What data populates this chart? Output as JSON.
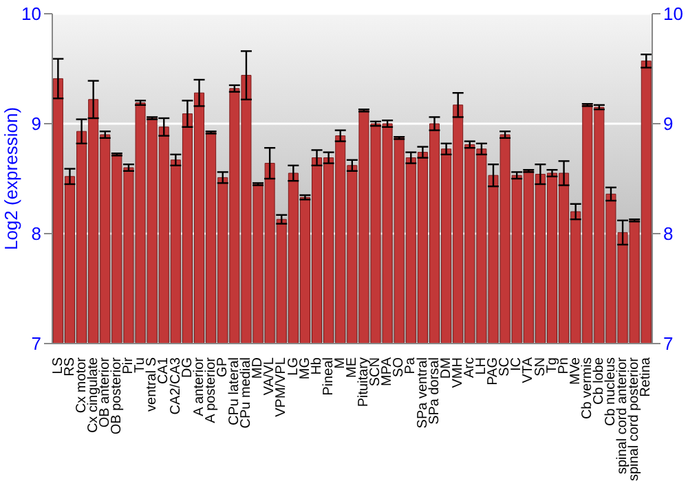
{
  "chart_data": {
    "type": "bar",
    "ylabel": "Log2 (expression)",
    "categories": [
      "LS",
      "RS",
      "Cx motor",
      "Cx cingulate",
      "OB anterior",
      "OB posterior",
      "Pir",
      "Tu",
      "ventral S",
      "CA1",
      "CA2/CA3",
      "DG",
      "A anterior",
      "A posterior",
      "GP",
      "CPu lateral",
      "CPu medial",
      "MD",
      "VA/VL",
      "VPM/VPL",
      "LG",
      "MG",
      "Hb",
      "Pineal",
      "M",
      "ME",
      "Pituitary",
      "SCN",
      "MPA",
      "SO",
      "Pa",
      "SPa ventral",
      "SPa dorsal",
      "DM",
      "VMH",
      "Arc",
      "LH",
      "PAG",
      "SC",
      "IC",
      "VTA",
      "SN",
      "Tg",
      "Pn",
      "MVe",
      "Cb vermis",
      "Cb lobe",
      "Cb nucleus",
      "spinal cord anterior",
      "spinal cord posterior",
      "Retina"
    ],
    "values": [
      9.41,
      8.52,
      8.93,
      9.22,
      8.9,
      8.72,
      8.6,
      9.19,
      9.05,
      8.97,
      8.67,
      9.09,
      9.28,
      8.92,
      8.51,
      9.32,
      9.44,
      8.45,
      8.64,
      8.13,
      8.55,
      8.33,
      8.69,
      8.69,
      8.89,
      8.62,
      9.12,
      9.0,
      9.0,
      8.87,
      8.69,
      8.74,
      9.0,
      8.77,
      9.17,
      8.81,
      8.77,
      8.53,
      8.9,
      8.53,
      8.57,
      8.54,
      8.55,
      8.55,
      8.2,
      9.17,
      9.15,
      8.36,
      8.01,
      8.12,
      9.57
    ],
    "errors": [
      0.18,
      0.07,
      0.11,
      0.17,
      0.03,
      0.01,
      0.03,
      0.02,
      0.01,
      0.08,
      0.05,
      0.12,
      0.12,
      0.01,
      0.05,
      0.03,
      0.22,
      0.01,
      0.14,
      0.04,
      0.07,
      0.02,
      0.07,
      0.05,
      0.05,
      0.05,
      0.01,
      0.02,
      0.03,
      0.01,
      0.05,
      0.05,
      0.06,
      0.05,
      0.11,
      0.03,
      0.05,
      0.1,
      0.03,
      0.03,
      0.01,
      0.09,
      0.03,
      0.11,
      0.07,
      0.01,
      0.02,
      0.06,
      0.11,
      0.01,
      0.06
    ],
    "color": "#c23838",
    "ylim": [
      7,
      10
    ],
    "yticks": [
      7,
      8,
      9,
      10
    ],
    "y2lim": [
      7,
      10
    ],
    "y2ticks": [
      7,
      8,
      9,
      10
    ],
    "grid": "y"
  }
}
